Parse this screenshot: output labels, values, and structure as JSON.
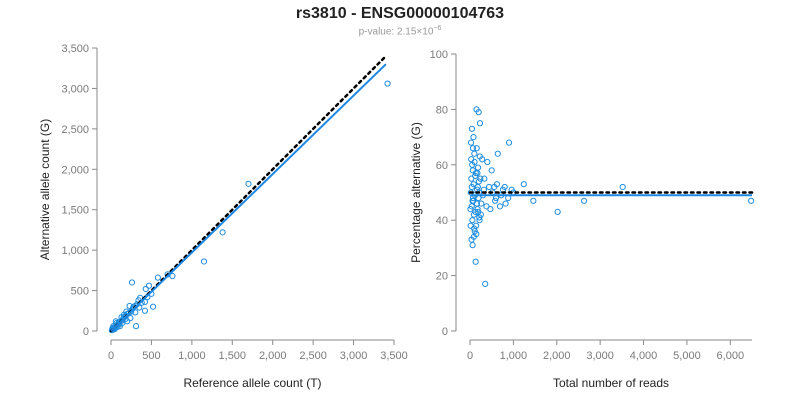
{
  "title": "rs3810 - ENSG00000104763",
  "subtitle": {
    "prefix": "p-value: 2.15×10",
    "exponent": "−6"
  },
  "colors": {
    "points": "#1f8dde",
    "fit": "#1e88e5",
    "reference": "#000000",
    "axis": "#8a8a8a",
    "ticks": "#7a7a7a"
  },
  "chart_data": [
    {
      "type": "scatter",
      "xlabel": "Reference allele count (T)",
      "ylabel": "Alternative allele count (G)",
      "xlim": [
        0,
        3500
      ],
      "ylim": [
        0,
        3500
      ],
      "xticks": [
        0,
        500,
        1000,
        1500,
        2000,
        2500,
        3000,
        3500
      ],
      "xtick_labels": [
        "0",
        "500",
        "1,000",
        "1,500",
        "2,000",
        "2,500",
        "3,000",
        "3,500"
      ],
      "yticks": [
        0,
        500,
        1000,
        1500,
        2000,
        2500,
        3000,
        3500
      ],
      "ytick_labels": [
        "0",
        "500",
        "1,000",
        "1,500",
        "2,000",
        "2,500",
        "3,000",
        "3,500"
      ],
      "grid": false,
      "fit_line": {
        "x": [
          0,
          3400
        ],
        "y": [
          0,
          3300
        ]
      },
      "reference_line": {
        "x": [
          0,
          3400
        ],
        "y": [
          0,
          3400
        ]
      },
      "points": [
        [
          3420,
          3060
        ],
        [
          1700,
          1820
        ],
        [
          1380,
          1220
        ],
        [
          1150,
          860
        ],
        [
          760,
          680
        ],
        [
          700,
          700
        ],
        [
          580,
          660
        ],
        [
          470,
          560
        ],
        [
          500,
          460
        ],
        [
          430,
          520
        ],
        [
          450,
          420
        ],
        [
          420,
          360
        ],
        [
          380,
          350
        ],
        [
          340,
          380
        ],
        [
          320,
          330
        ],
        [
          300,
          310
        ],
        [
          280,
          300
        ],
        [
          270,
          280
        ],
        [
          250,
          240
        ],
        [
          220,
          220
        ],
        [
          200,
          210
        ],
        [
          180,
          190
        ],
        [
          160,
          170
        ],
        [
          150,
          150
        ],
        [
          140,
          130
        ],
        [
          120,
          120
        ],
        [
          100,
          110
        ],
        [
          90,
          90
        ],
        [
          80,
          80
        ],
        [
          70,
          70
        ],
        [
          60,
          60
        ],
        [
          50,
          50
        ],
        [
          40,
          40
        ],
        [
          30,
          30
        ],
        [
          20,
          20
        ],
        [
          10,
          10
        ],
        [
          260,
          600
        ],
        [
          520,
          300
        ],
        [
          310,
          60
        ],
        [
          420,
          250
        ],
        [
          350,
          290
        ],
        [
          240,
          160
        ],
        [
          200,
          120
        ],
        [
          160,
          200
        ],
        [
          110,
          60
        ],
        [
          60,
          120
        ],
        [
          40,
          20
        ],
        [
          80,
          50
        ],
        [
          300,
          230
        ],
        [
          230,
          310
        ],
        [
          180,
          150
        ],
        [
          130,
          170
        ],
        [
          100,
          80
        ],
        [
          70,
          100
        ],
        [
          50,
          30
        ],
        [
          30,
          60
        ],
        [
          20,
          40
        ],
        [
          140,
          100
        ],
        [
          190,
          240
        ],
        [
          360,
          410
        ]
      ]
    },
    {
      "type": "scatter",
      "xlabel": "Total number of reads",
      "ylabel": "Percentage alternative (G)",
      "xlim": [
        0,
        6500
      ],
      "ylim": [
        0,
        100
      ],
      "xticks": [
        0,
        1000,
        2000,
        3000,
        4000,
        5000,
        6000
      ],
      "xtick_labels": [
        "0",
        "1,000",
        "2,000",
        "3,000",
        "4,000",
        "5,000",
        "6,000"
      ],
      "yticks": [
        0,
        20,
        40,
        60,
        80,
        100
      ],
      "ytick_labels": [
        "0",
        "20",
        "40",
        "60",
        "80",
        "100"
      ],
      "grid": false,
      "fit_line": {
        "x": [
          0,
          6500
        ],
        "y": [
          49,
          49
        ]
      },
      "reference_line": {
        "x": [
          0,
          6500
        ],
        "y": [
          50,
          50
        ]
      },
      "points": [
        [
          6480,
          47
        ],
        [
          3520,
          52
        ],
        [
          2630,
          47
        ],
        [
          2020,
          43
        ],
        [
          1460,
          47
        ],
        [
          1240,
          53
        ],
        [
          1000,
          50
        ],
        [
          960,
          51
        ],
        [
          900,
          68
        ],
        [
          820,
          46
        ],
        [
          760,
          51
        ],
        [
          690,
          45
        ],
        [
          640,
          64
        ],
        [
          600,
          48
        ],
        [
          560,
          52
        ],
        [
          500,
          58
        ],
        [
          470,
          44
        ],
        [
          440,
          52
        ],
        [
          400,
          61
        ],
        [
          380,
          45
        ],
        [
          350,
          17
        ],
        [
          330,
          55
        ],
        [
          300,
          49
        ],
        [
          280,
          62
        ],
        [
          250,
          42
        ],
        [
          230,
          75
        ],
        [
          220,
          40
        ],
        [
          200,
          79
        ],
        [
          180,
          52
        ],
        [
          160,
          46
        ],
        [
          150,
          80
        ],
        [
          140,
          38
        ],
        [
          130,
          25
        ],
        [
          120,
          56
        ],
        [
          110,
          36
        ],
        [
          100,
          64
        ],
        [
          90,
          42
        ],
        [
          80,
          70
        ],
        [
          70,
          48
        ],
        [
          60,
          31
        ],
        [
          50,
          60
        ],
        [
          40,
          45
        ],
        [
          30,
          55
        ],
        [
          20,
          50
        ],
        [
          10,
          44
        ],
        [
          25,
          68
        ],
        [
          35,
          33
        ],
        [
          45,
          73
        ],
        [
          55,
          40
        ],
        [
          65,
          58
        ],
        [
          75,
          47
        ],
        [
          85,
          53
        ],
        [
          95,
          37
        ],
        [
          105,
          61
        ],
        [
          115,
          49
        ],
        [
          125,
          43
        ],
        [
          135,
          57
        ],
        [
          145,
          35
        ],
        [
          155,
          66
        ],
        [
          165,
          51
        ],
        [
          175,
          44
        ],
        [
          185,
          59
        ],
        [
          195,
          48
        ],
        [
          205,
          54
        ],
        [
          215,
          41
        ],
        [
          225,
          63
        ],
        [
          15,
          38
        ],
        [
          28,
          62
        ],
        [
          42,
          52
        ],
        [
          58,
          47
        ],
        [
          68,
          66
        ],
        [
          88,
          34
        ],
        [
          320,
          51
        ],
        [
          260,
          46
        ],
        [
          240,
          55
        ],
        [
          210,
          50
        ],
        [
          190,
          43
        ],
        [
          170,
          57
        ],
        [
          520,
          50
        ],
        [
          580,
          47
        ],
        [
          620,
          53
        ],
        [
          720,
          49
        ],
        [
          800,
          52
        ],
        [
          880,
          48
        ]
      ]
    }
  ]
}
